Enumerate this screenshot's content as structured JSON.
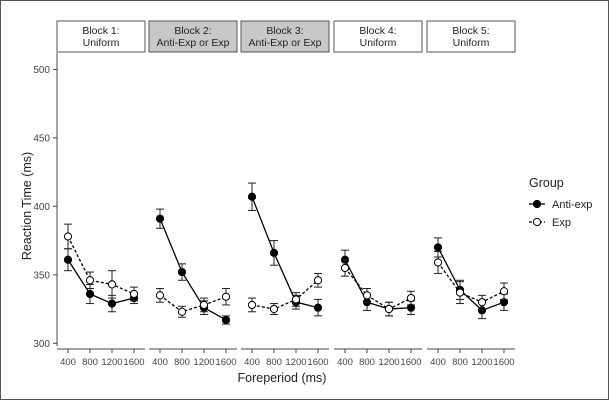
{
  "chart_data": {
    "type": "line",
    "facet_by": "Block",
    "panels": [
      {
        "label_line1": "Block 1:",
        "label_line2": "Uniform",
        "shaded": false
      },
      {
        "label_line1": "Block 2:",
        "label_line2": "Anti-Exp or Exp",
        "shaded": true
      },
      {
        "label_line1": "Block 3:",
        "label_line2": "Anti-Exp or Exp",
        "shaded": true
      },
      {
        "label_line1": "Block 4:",
        "label_line2": "Uniform",
        "shaded": false
      },
      {
        "label_line1": "Block 5:",
        "label_line2": "Uniform",
        "shaded": false
      }
    ],
    "categories": [
      "400",
      "800",
      "1200",
      "1600"
    ],
    "xlabel": "Foreperiod (ms)",
    "ylabel": "Reaction Time (ms)",
    "ylim": [
      298,
      512
    ],
    "yticks": [
      300,
      350,
      400,
      450,
      500
    ],
    "grid": false,
    "legend": {
      "title": "Group",
      "position": "right"
    },
    "series": [
      {
        "name": "Anti-exp",
        "marker": "filled-circle",
        "line": "solid",
        "color": "#000000",
        "values": [
          [
            361,
            336,
            329,
            333
          ],
          [
            391,
            352,
            326,
            317
          ],
          [
            407,
            366,
            330,
            326
          ],
          [
            361,
            330,
            325,
            326
          ],
          [
            370,
            339,
            324,
            330
          ]
        ],
        "errors": [
          [
            8,
            7,
            6,
            4
          ],
          [
            7,
            6,
            5,
            3
          ],
          [
            10,
            9,
            5,
            6
          ],
          [
            7,
            6,
            5,
            5
          ],
          [
            7,
            7,
            6,
            6
          ]
        ]
      },
      {
        "name": "Exp",
        "marker": "open-circle",
        "line": "dashed",
        "color": "#000000",
        "values": [
          [
            378,
            346,
            343,
            336
          ],
          [
            335,
            323,
            328,
            334
          ],
          [
            328,
            325,
            332,
            346
          ],
          [
            355,
            335,
            325,
            333
          ],
          [
            359,
            337,
            330,
            338
          ]
        ],
        "errors": [
          [
            9,
            6,
            10,
            5
          ],
          [
            5,
            4,
            5,
            6
          ],
          [
            5,
            4,
            5,
            5
          ],
          [
            6,
            5,
            5,
            5
          ],
          [
            8,
            8,
            5,
            6
          ]
        ]
      }
    ]
  }
}
